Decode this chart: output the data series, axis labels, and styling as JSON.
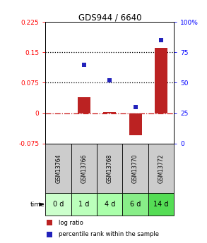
{
  "title": "GDS944 / 6640",
  "samples": [
    "GSM13764",
    "GSM13766",
    "GSM13768",
    "GSM13770",
    "GSM13772"
  ],
  "time_labels": [
    "0 d",
    "1 d",
    "4 d",
    "6 d",
    "14 d"
  ],
  "log_ratio": [
    0.0,
    0.04,
    0.002,
    -0.055,
    0.16
  ],
  "percentile_rank": [
    null,
    65,
    52,
    30,
    85
  ],
  "ylim_left": [
    -0.075,
    0.225
  ],
  "ylim_right": [
    0,
    100
  ],
  "yticks_left": [
    -0.075,
    0,
    0.075,
    0.15,
    0.225
  ],
  "ytick_labels_left": [
    "-0.075",
    "0",
    "0.075",
    "0.15",
    "0.225"
  ],
  "yticks_right": [
    0,
    25,
    50,
    75,
    100
  ],
  "ytick_labels_right": [
    "0",
    "25",
    "50",
    "75",
    "100%"
  ],
  "hlines": [
    0.075,
    0.15
  ],
  "bar_color": "#bb2222",
  "marker_color": "#2222bb",
  "zero_line_color": "#cc2222",
  "hline_color": "#000000",
  "gsm_bg_color": "#cccccc",
  "time_bg_colors": [
    "#ccffcc",
    "#bbffbb",
    "#aaffaa",
    "#88ee88",
    "#55dd55"
  ],
  "bar_width": 0.5,
  "figsize": [
    2.93,
    3.45
  ],
  "dpi": 100
}
